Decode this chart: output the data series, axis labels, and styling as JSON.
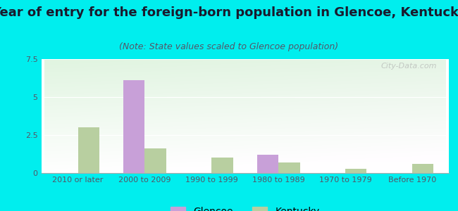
{
  "title": "Year of entry for the foreign-born population in Glencoe, Kentucky",
  "subtitle": "(Note: State values scaled to Glencoe population)",
  "categories": [
    "2010 or later",
    "2000 to 2009",
    "1990 to 1999",
    "1980 to 1989",
    "1970 to 1979",
    "Before 1970"
  ],
  "glencoe_values": [
    0,
    6.1,
    0,
    1.2,
    0,
    0
  ],
  "kentucky_values": [
    3.0,
    1.6,
    1.0,
    0.7,
    0.3,
    0.6
  ],
  "glencoe_color": "#c8a0d8",
  "kentucky_color": "#b8cfa0",
  "ylim": [
    0,
    7.5
  ],
  "yticks": [
    0,
    2.5,
    5,
    7.5
  ],
  "bar_width": 0.32,
  "background_color": "#00eeee",
  "title_color": "#1a1a2e",
  "subtitle_color": "#555566",
  "title_fontsize": 13,
  "subtitle_fontsize": 9,
  "tick_fontsize": 8,
  "legend_fontsize": 10
}
